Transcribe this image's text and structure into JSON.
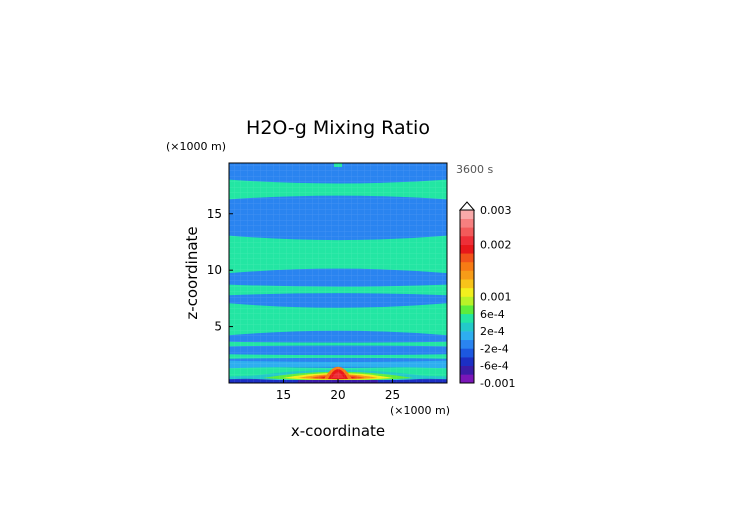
{
  "chart_data": {
    "type": "heatmap",
    "title": "H2O-g Mixing Ratio",
    "time_label": "3600 s",
    "xlabel": "x-coordinate",
    "ylabel": "z-coordinate",
    "x_unit": "(×1000 m)",
    "y_unit": "(×1000 m)",
    "xlim": [
      10,
      30
    ],
    "ylim": [
      0,
      19.5
    ],
    "x_ticks": [
      "15",
      "20",
      "25"
    ],
    "x_tick_values": [
      15,
      20,
      25
    ],
    "y_ticks": [
      "5",
      "10",
      "15"
    ],
    "y_tick_values": [
      5,
      10,
      15
    ],
    "colorbar": {
      "colors": [
        "#7a16b8",
        "#3b1ca8",
        "#1c2fc4",
        "#1c58e0",
        "#2a84f0",
        "#2eaef0",
        "#23c9c9",
        "#23e6a3",
        "#5ced3c",
        "#b9f228",
        "#f2ef1e",
        "#f7c31a",
        "#f79c18",
        "#f77b14",
        "#f2531a",
        "#e8181a",
        "#ee2f37",
        "#f25a5a",
        "#f67f7f",
        "#f9a9a9"
      ],
      "labels": [
        "-0.001",
        "-6e-4",
        "-2e-4",
        "2e-4",
        "6e-4",
        "0.001",
        "0.002",
        "0.003"
      ],
      "label_levels": [
        0,
        2,
        4,
        6,
        8,
        10,
        16,
        20
      ],
      "extend_max": true
    },
    "bands": [
      {
        "z": [
          0.0,
          0.4
        ],
        "level": 2,
        "color": "#1c2fc4"
      },
      {
        "z": [
          0.4,
          0.7
        ],
        "level": 6,
        "color": "#23c9c9"
      },
      {
        "z": [
          0.7,
          1.4
        ],
        "level": 7,
        "color": "#23e6a3"
      },
      {
        "z": [
          1.4,
          1.9
        ],
        "level": 5,
        "color": "#2eaef0"
      },
      {
        "z": [
          2.2,
          2.5
        ],
        "level": 7,
        "color": "#23e6a3"
      },
      {
        "z": [
          3.3,
          3.6
        ],
        "level": 7,
        "color": "#23e6a3"
      },
      {
        "z": [
          4.5,
          6.8
        ],
        "level": 7,
        "color": "#23e6a3"
      },
      {
        "z": [
          7.9,
          8.6
        ],
        "level": 7,
        "color": "#23e6a3"
      },
      {
        "z": [
          10.0,
          12.8
        ],
        "level": 7,
        "color": "#23e6a3"
      },
      {
        "z": [
          16.5,
          17.8
        ],
        "level": 7,
        "color": "#23e6a3"
      }
    ],
    "background_color": "#2a84f0",
    "feature": {
      "x_center": 20,
      "z_top": 2.0,
      "peak_value": 0.003
    }
  }
}
